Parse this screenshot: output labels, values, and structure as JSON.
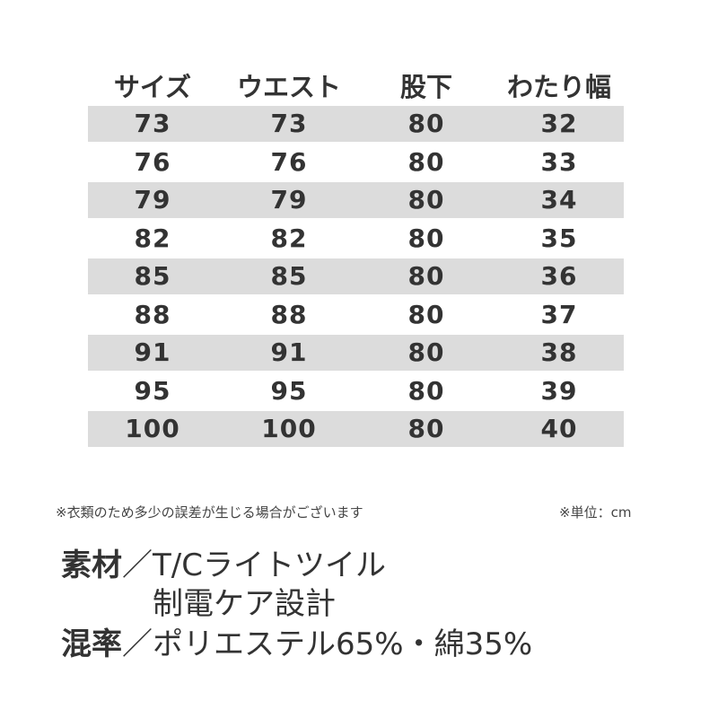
{
  "table": {
    "headers": [
      "サイズ",
      "ウエスト",
      "股下",
      "わたり幅"
    ],
    "rows": [
      [
        "73",
        "73",
        "80",
        "32"
      ],
      [
        "76",
        "76",
        "80",
        "33"
      ],
      [
        "79",
        "79",
        "80",
        "34"
      ],
      [
        "82",
        "82",
        "80",
        "35"
      ],
      [
        "85",
        "85",
        "80",
        "36"
      ],
      [
        "88",
        "88",
        "80",
        "37"
      ],
      [
        "91",
        "91",
        "80",
        "38"
      ],
      [
        "95",
        "95",
        "80",
        "39"
      ],
      [
        "100",
        "100",
        "80",
        "40"
      ]
    ],
    "shade_color": "#dcdcdc"
  },
  "notes": {
    "disclaimer": "※衣類のため多少の誤差が生じる場合がございます",
    "unit": "※単位：cm"
  },
  "material": {
    "label": "素材",
    "value": "／T/Cライトツイル",
    "extra": "制電ケア設計"
  },
  "blend": {
    "label": "混率",
    "value": "／ポリエステル65%・綿35%"
  }
}
